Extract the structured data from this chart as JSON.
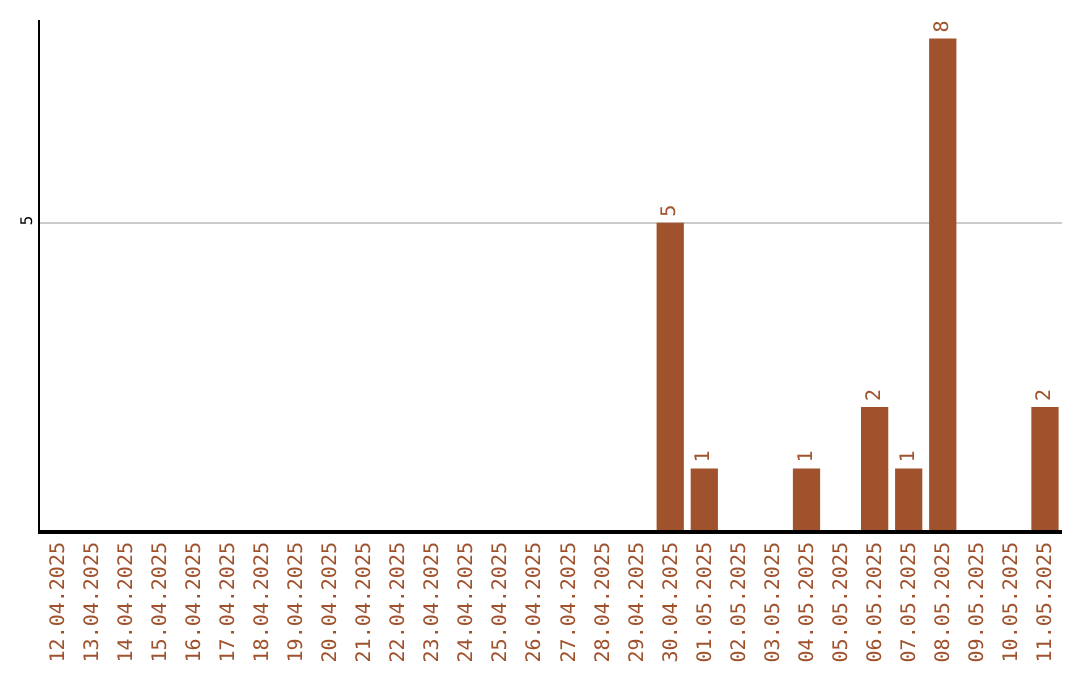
{
  "chart_data": {
    "type": "bar",
    "ylim": [
      0,
      8.3
    ],
    "categories": [
      "12.04.2025",
      "13.04.2025",
      "14.04.2025",
      "15.04.2025",
      "16.04.2025",
      "17.04.2025",
      "18.04.2025",
      "19.04.2025",
      "20.04.2025",
      "21.04.2025",
      "22.04.2025",
      "23.04.2025",
      "24.04.2025",
      "25.04.2025",
      "26.04.2025",
      "27.04.2025",
      "28.04.2025",
      "29.04.2025",
      "30.04.2025",
      "01.05.2025",
      "02.05.2025",
      "03.05.2025",
      "04.05.2025",
      "05.05.2025",
      "06.05.2025",
      "07.05.2025",
      "08.05.2025",
      "09.05.2025",
      "10.05.2025",
      "11.05.2025"
    ],
    "values": [
      null,
      null,
      null,
      null,
      null,
      null,
      null,
      null,
      null,
      null,
      null,
      null,
      null,
      null,
      null,
      null,
      null,
      null,
      5,
      1,
      null,
      null,
      1,
      null,
      2,
      1,
      8,
      null,
      null,
      2
    ],
    "data_labels": true,
    "color": "#a0522d",
    "yticks": [
      5
    ],
    "grid": "y"
  }
}
